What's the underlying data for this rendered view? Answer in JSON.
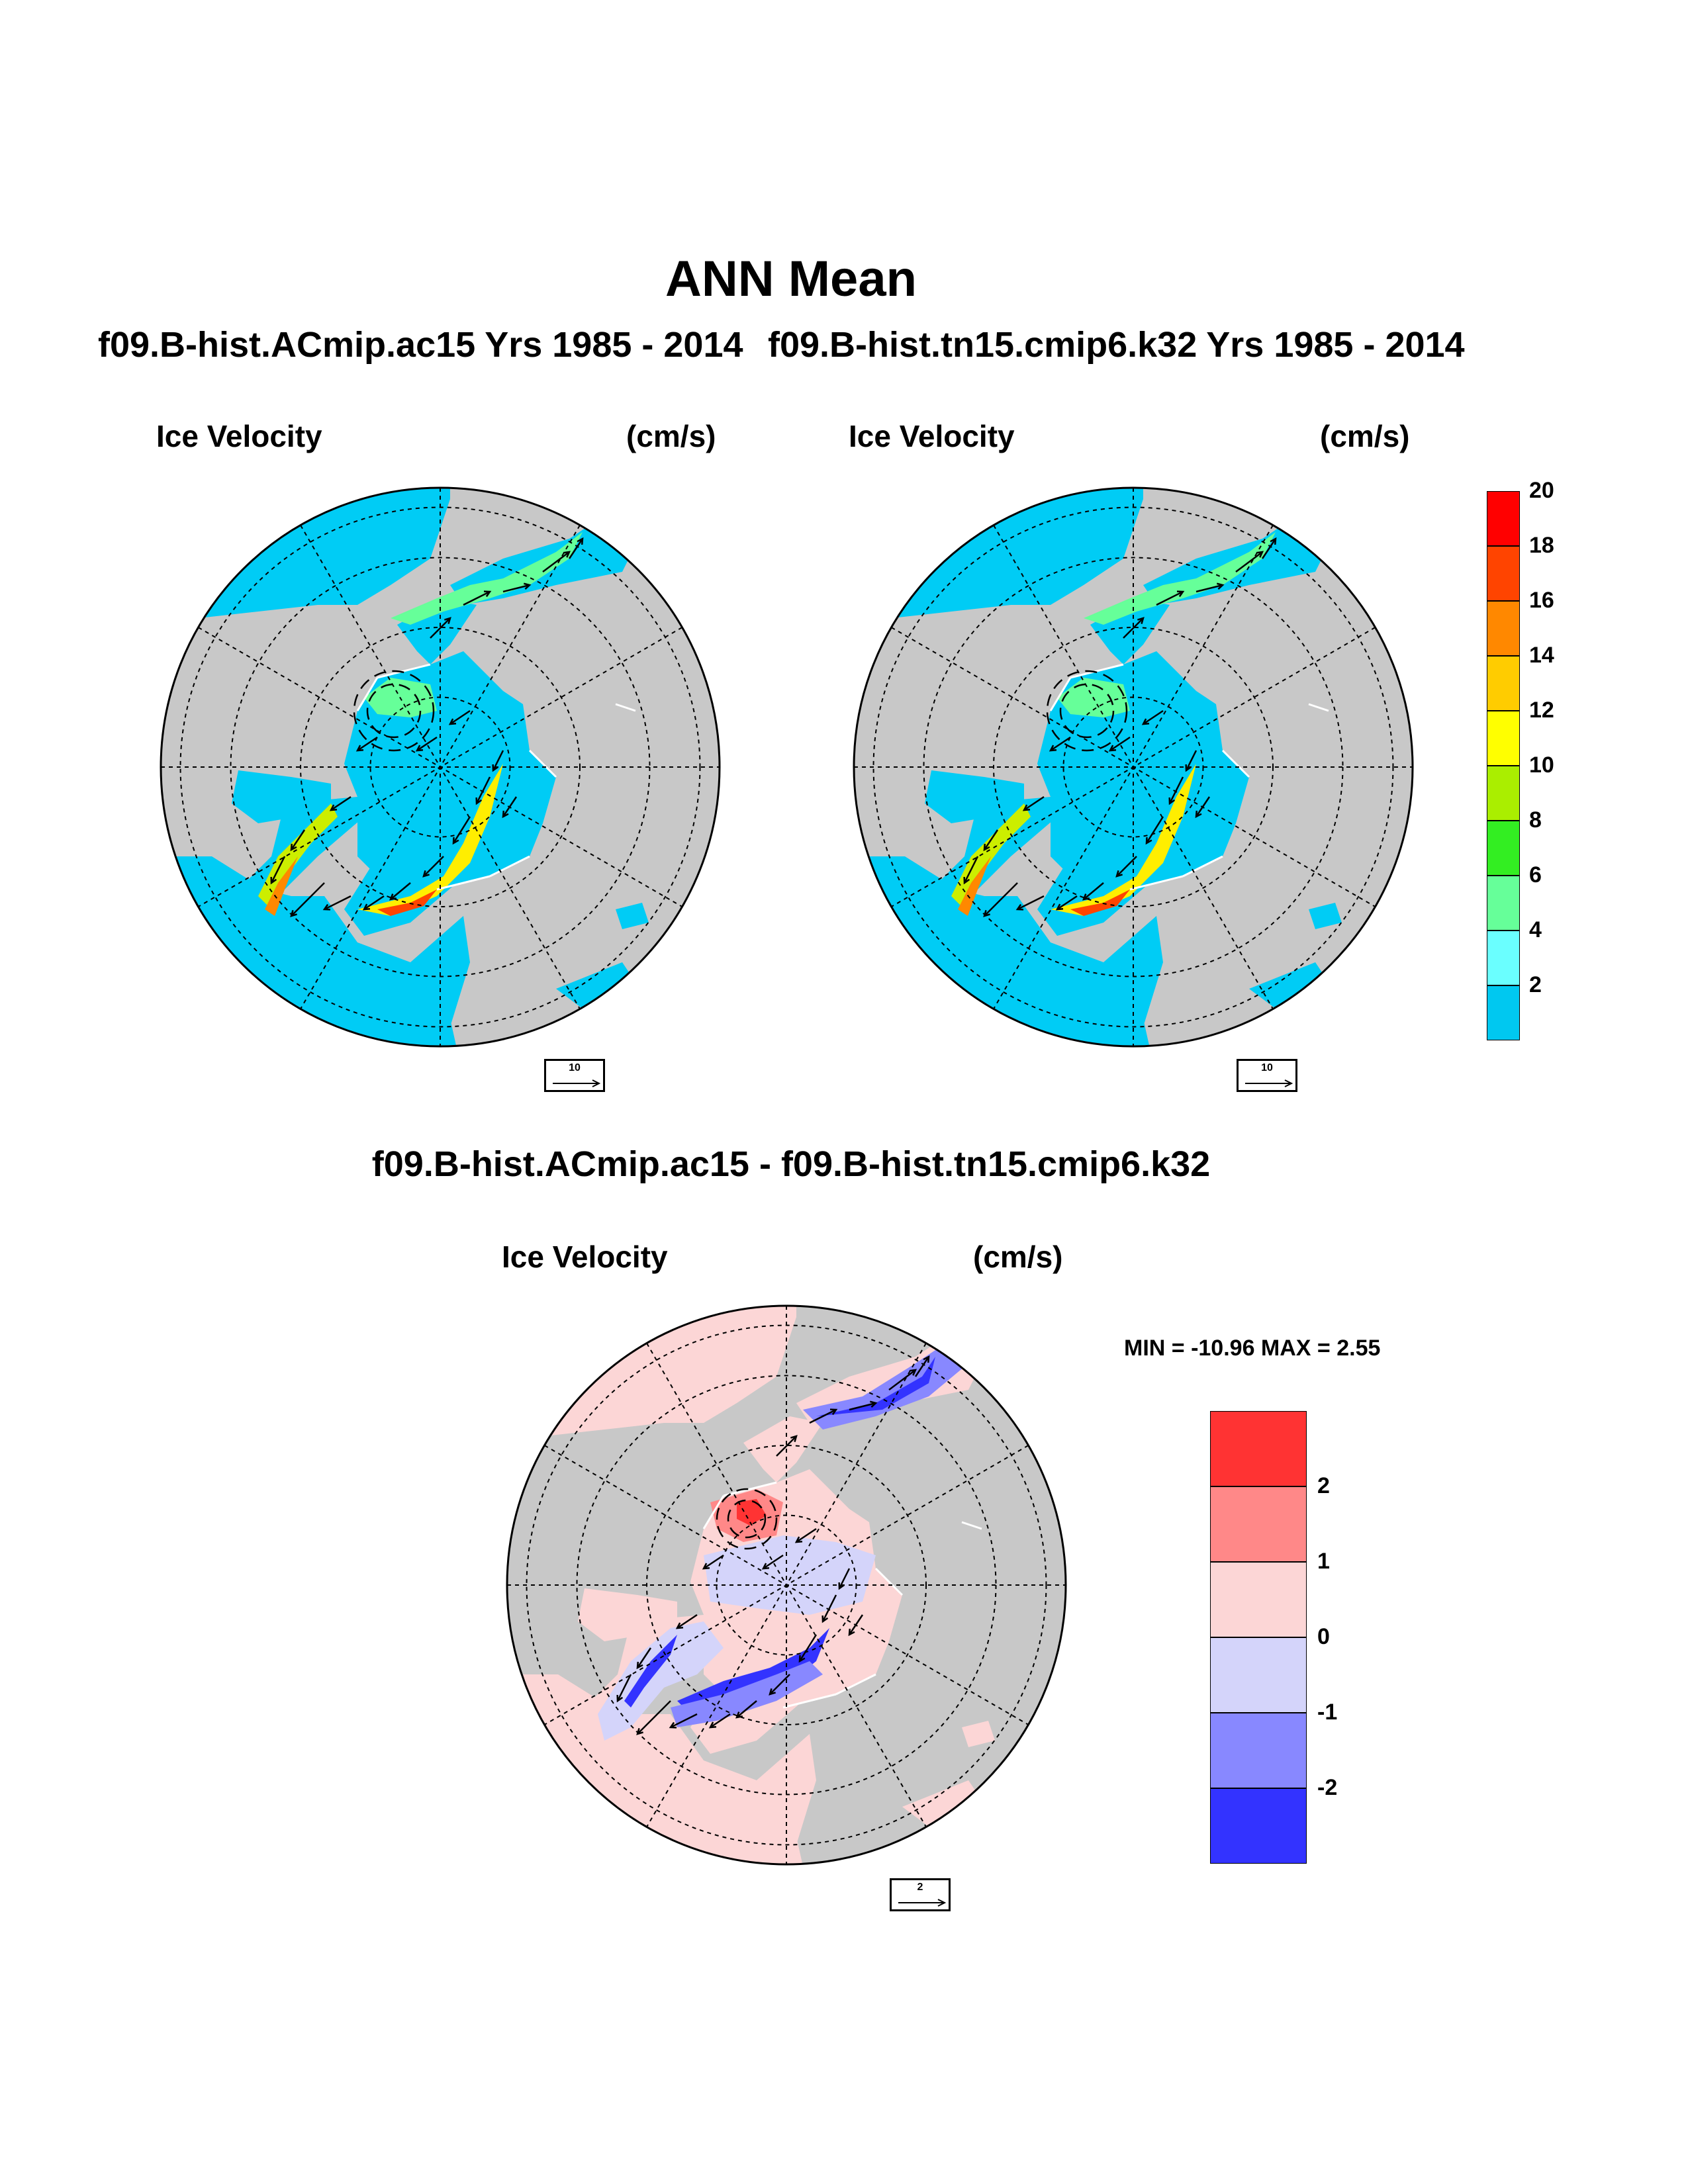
{
  "title": "ANN Mean",
  "panels": {
    "left": {
      "case": "f09.B-hist.ACmip.ac15  Yrs 1985 - 2014",
      "var": "Ice Velocity",
      "units": "(cm/s)",
      "ref_vector": "10"
    },
    "right": {
      "case": "f09.B-hist.tn15.cmip6.k32  Yrs 1985 - 2014",
      "var": "Ice Velocity",
      "units": "(cm/s)",
      "ref_vector": "10"
    },
    "diff": {
      "title": "f09.B-hist.ACmip.ac15 - f09.B-hist.tn15.cmip6.k32",
      "var": "Ice Velocity",
      "units": "(cm/s)",
      "ref_vector": "2",
      "minmax": "MIN = -10.96 MAX =   2.55"
    }
  },
  "colorbar_main": {
    "labels": [
      "2",
      "4",
      "6",
      "8",
      "10",
      "12",
      "14",
      "16",
      "18",
      "20"
    ],
    "colors": [
      "#00c8f0",
      "#6affff",
      "#66ff99",
      "#33ee22",
      "#aaee00",
      "#ffff00",
      "#ffcc00",
      "#ff8800",
      "#ff4400",
      "#ff0000"
    ]
  },
  "colorbar_diff": {
    "labels": [
      "2",
      "1",
      "0",
      "-1",
      "-2"
    ],
    "colors": [
      "#ff3333",
      "#ff8888",
      "#fcd6d6",
      "#d4d4fa",
      "#8888ff",
      "#3333ff"
    ]
  },
  "colors": {
    "land": "#c8c8c8",
    "open_ocean_main": "#00ccf5",
    "open_ocean_diff": "#fcd6d6"
  }
}
